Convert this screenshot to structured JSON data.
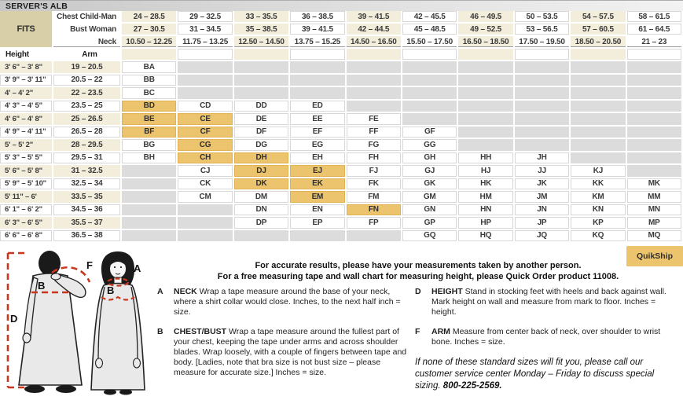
{
  "title": "SERVER'S ALB",
  "table": {
    "corner_label": "FITS",
    "header_rows": [
      {
        "label": "Chest Child-Man",
        "values": [
          "24 – 28.5",
          "29 – 32.5",
          "33 – 35.5",
          "36 – 38.5",
          "39 – 41.5",
          "42 – 45.5",
          "46 – 49.5",
          "50 – 53.5",
          "54 – 57.5",
          "58 – 61.5"
        ]
      },
      {
        "label": "Bust Woman",
        "values": [
          "27 – 30.5",
          "31 – 34.5",
          "35 – 38.5",
          "39 – 41.5",
          "42 – 44.5",
          "45 – 48.5",
          "49 – 52.5",
          "53 – 56.5",
          "57 – 60.5",
          "61 – 64.5"
        ]
      },
      {
        "label": "Neck",
        "values": [
          "10.50 – 12.25",
          "11.75 – 13.25",
          "12.50 – 14.50",
          "13.75 – 15.25",
          "14.50 – 16.50",
          "15.50 – 17.50",
          "16.50 – 18.50",
          "17.50 – 19.50",
          "18.50 – 20.50",
          "21 – 23"
        ]
      }
    ],
    "axis": {
      "height_label": "Height",
      "arm_label": "Arm"
    },
    "rows": [
      {
        "height": "3' 6\" – 3' 8\"",
        "arm": "19 – 20.5",
        "cells": [
          "BA",
          "",
          "",
          "",
          "",
          "",
          "",
          "",
          "",
          ""
        ]
      },
      {
        "height": "3' 9\" – 3' 11\"",
        "arm": "20.5 – 22",
        "cells": [
          "BB",
          "",
          "",
          "",
          "",
          "",
          "",
          "",
          "",
          ""
        ]
      },
      {
        "height": "4' – 4' 2\"",
        "arm": "22 – 23.5",
        "cells": [
          "BC",
          "",
          "",
          "",
          "",
          "",
          "",
          "",
          "",
          ""
        ]
      },
      {
        "height": "4' 3\" – 4' 5\"",
        "arm": "23.5 – 25",
        "cells": [
          "BD",
          "CD",
          "DD",
          "ED",
          "",
          "",
          "",
          "",
          "",
          ""
        ]
      },
      {
        "height": "4' 6\" – 4' 8\"",
        "arm": "25 – 26.5",
        "cells": [
          "BE",
          "CE",
          "DE",
          "EE",
          "FE",
          "",
          "",
          "",
          "",
          ""
        ]
      },
      {
        "height": "4' 9\" – 4' 11\"",
        "arm": "26.5 – 28",
        "cells": [
          "BF",
          "CF",
          "DF",
          "EF",
          "FF",
          "GF",
          "",
          "",
          "",
          ""
        ]
      },
      {
        "height": "5' – 5' 2\"",
        "arm": "28 – 29.5",
        "cells": [
          "BG",
          "CG",
          "DG",
          "EG",
          "FG",
          "GG",
          "",
          "",
          "",
          ""
        ]
      },
      {
        "height": "5' 3\" – 5' 5\"",
        "arm": "29.5 – 31",
        "cells": [
          "BH",
          "CH",
          "DH",
          "EH",
          "FH",
          "GH",
          "HH",
          "JH",
          "",
          ""
        ]
      },
      {
        "height": "5' 6\" – 5' 8\"",
        "arm": "31 – 32.5",
        "cells": [
          "",
          "CJ",
          "DJ",
          "EJ",
          "FJ",
          "GJ",
          "HJ",
          "JJ",
          "KJ",
          ""
        ]
      },
      {
        "height": "5' 9\" – 5' 10\"",
        "arm": "32.5 – 34",
        "cells": [
          "",
          "CK",
          "DK",
          "EK",
          "FK",
          "GK",
          "HK",
          "JK",
          "KK",
          "MK"
        ]
      },
      {
        "height": "5' 11\" – 6'",
        "arm": "33.5 – 35",
        "cells": [
          "",
          "CM",
          "DM",
          "EM",
          "FM",
          "GM",
          "HM",
          "JM",
          "KM",
          "MM"
        ]
      },
      {
        "height": "6' 1\" – 6' 2\"",
        "arm": "34.5 – 36",
        "cells": [
          "",
          "",
          "DN",
          "EN",
          "FN",
          "GN",
          "HN",
          "JN",
          "KN",
          "MN"
        ]
      },
      {
        "height": "6' 3\" – 6' 5\"",
        "arm": "35.5 – 37",
        "cells": [
          "",
          "",
          "DP",
          "EP",
          "FP",
          "GP",
          "HP",
          "JP",
          "KP",
          "MP"
        ]
      },
      {
        "height": "6' 6\" – 6' 8\"",
        "arm": "36.5 – 38",
        "cells": [
          "",
          "",
          "",
          "",
          "",
          "GQ",
          "HQ",
          "JQ",
          "KQ",
          "MQ"
        ]
      }
    ],
    "quikship_codes": [
      "BD",
      "BE",
      "BF",
      "CE",
      "CF",
      "CG",
      "CH",
      "DH",
      "DJ",
      "DK",
      "EJ",
      "EK",
      "EM",
      "FN"
    ]
  },
  "notes": {
    "line1": "For accurate results, please have your measurements taken by another person.",
    "line2": "For a free measuring tape and wall chart for measuring height, please Quick Order product 11008.",
    "quikship_label": "QuikShip",
    "instructions": [
      {
        "key": "A",
        "title": "NECK",
        "text": "Wrap a tape measure around the base of your neck, where a shirt collar would close. Inches, to the next half inch = size."
      },
      {
        "key": "B",
        "title": "CHEST/BUST",
        "text": "Wrap a tape measure around the fullest part of your chest, keeping the tape under arms and across shoulder blades. Wrap loosely, with a couple of fingers between tape and body. [Ladies, note that bra size is not bust size – please measure for accurate size.] Inches = size."
      },
      {
        "key": "D",
        "title": "HEIGHT",
        "text": "Stand in stocking feet with heels and back against wall. Mark height on wall and measure from mark to floor. Inches = height."
      },
      {
        "key": "F",
        "title": "ARM",
        "text": "Measure from center back of neck, over shoulder to wrist bone. Inches = size."
      }
    ],
    "special_sizing_text": "If none of these standard sizes will fit you, please call our customer service center Monday – Friday to discuss special sizing. ",
    "special_sizing_phone": "800-225-2569."
  },
  "diagram": {
    "label_d": "D",
    "label_b_back": "B",
    "label_f": "F",
    "label_a": "A",
    "label_b_front": "B"
  },
  "colors": {
    "quikship_orange": "#ecc46e",
    "cream_column": "#f3eedb",
    "fits_tan": "#d8cfa9",
    "empty_gray": "#dcdcdc",
    "measure_red": "#c8381f"
  }
}
